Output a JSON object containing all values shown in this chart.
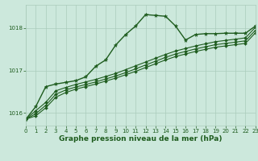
{
  "title": "Graphe pression niveau de la mer (hPa)",
  "background_color": "#cce8dc",
  "grid_color": "#aaccbb",
  "line_color": "#1e5c1e",
  "xlim": [
    0,
    23
  ],
  "ylim": [
    1015.7,
    1018.55
  ],
  "yticks": [
    1016,
    1017,
    1018
  ],
  "xticks": [
    0,
    1,
    2,
    3,
    4,
    5,
    6,
    7,
    8,
    9,
    10,
    11,
    12,
    13,
    14,
    15,
    16,
    17,
    18,
    19,
    20,
    21,
    22,
    23
  ],
  "series": [
    {
      "x": [
        0,
        1,
        2,
        3,
        4,
        5,
        6,
        7,
        8,
        9,
        10,
        11,
        12,
        13,
        14,
        15,
        16,
        17,
        18,
        19,
        20,
        21,
        22,
        23
      ],
      "y": [
        1015.85,
        1016.15,
        1016.62,
        1016.68,
        1016.72,
        1016.76,
        1016.85,
        1017.1,
        1017.25,
        1017.6,
        1017.85,
        1018.05,
        1018.32,
        1018.3,
        1018.28,
        1018.05,
        1017.72,
        1017.85,
        1017.87,
        1017.87,
        1017.88,
        1017.88,
        1017.88,
        1018.05
      ],
      "marker": "*",
      "linewidth": 1.0,
      "markersize": 3.5
    },
    {
      "x": [
        0,
        1,
        2,
        3,
        4,
        5,
        6,
        7,
        8,
        9,
        10,
        11,
        12,
        13,
        14,
        15,
        16,
        17,
        18,
        19,
        20,
        21,
        22,
        23
      ],
      "y": [
        1015.85,
        1016.05,
        1016.25,
        1016.52,
        1016.6,
        1016.67,
        1016.73,
        1016.79,
        1016.86,
        1016.93,
        1017.02,
        1017.11,
        1017.2,
        1017.29,
        1017.38,
        1017.46,
        1017.52,
        1017.58,
        1017.63,
        1017.68,
        1017.71,
        1017.74,
        1017.77,
        1018.02
      ],
      "marker": "D",
      "linewidth": 0.8,
      "markersize": 2.0
    },
    {
      "x": [
        0,
        1,
        2,
        3,
        4,
        5,
        6,
        7,
        8,
        9,
        10,
        11,
        12,
        13,
        14,
        15,
        16,
        17,
        18,
        19,
        20,
        21,
        22,
        23
      ],
      "y": [
        1015.85,
        1015.98,
        1016.18,
        1016.44,
        1016.54,
        1016.61,
        1016.67,
        1016.73,
        1016.8,
        1016.87,
        1016.95,
        1017.04,
        1017.13,
        1017.22,
        1017.31,
        1017.39,
        1017.45,
        1017.51,
        1017.56,
        1017.61,
        1017.64,
        1017.67,
        1017.7,
        1017.95
      ],
      "marker": "D",
      "linewidth": 0.8,
      "markersize": 2.0
    },
    {
      "x": [
        0,
        1,
        2,
        3,
        4,
        5,
        6,
        7,
        8,
        9,
        10,
        11,
        12,
        13,
        14,
        15,
        16,
        17,
        18,
        19,
        20,
        21,
        22,
        23
      ],
      "y": [
        1015.85,
        1015.93,
        1016.12,
        1016.37,
        1016.48,
        1016.56,
        1016.62,
        1016.68,
        1016.75,
        1016.82,
        1016.9,
        1016.98,
        1017.07,
        1017.16,
        1017.25,
        1017.33,
        1017.39,
        1017.45,
        1017.5,
        1017.55,
        1017.58,
        1017.61,
        1017.64,
        1017.89
      ],
      "marker": "D",
      "linewidth": 0.8,
      "markersize": 2.0
    }
  ],
  "label_fontsize": 6.5,
  "tick_fontsize": 5.0
}
